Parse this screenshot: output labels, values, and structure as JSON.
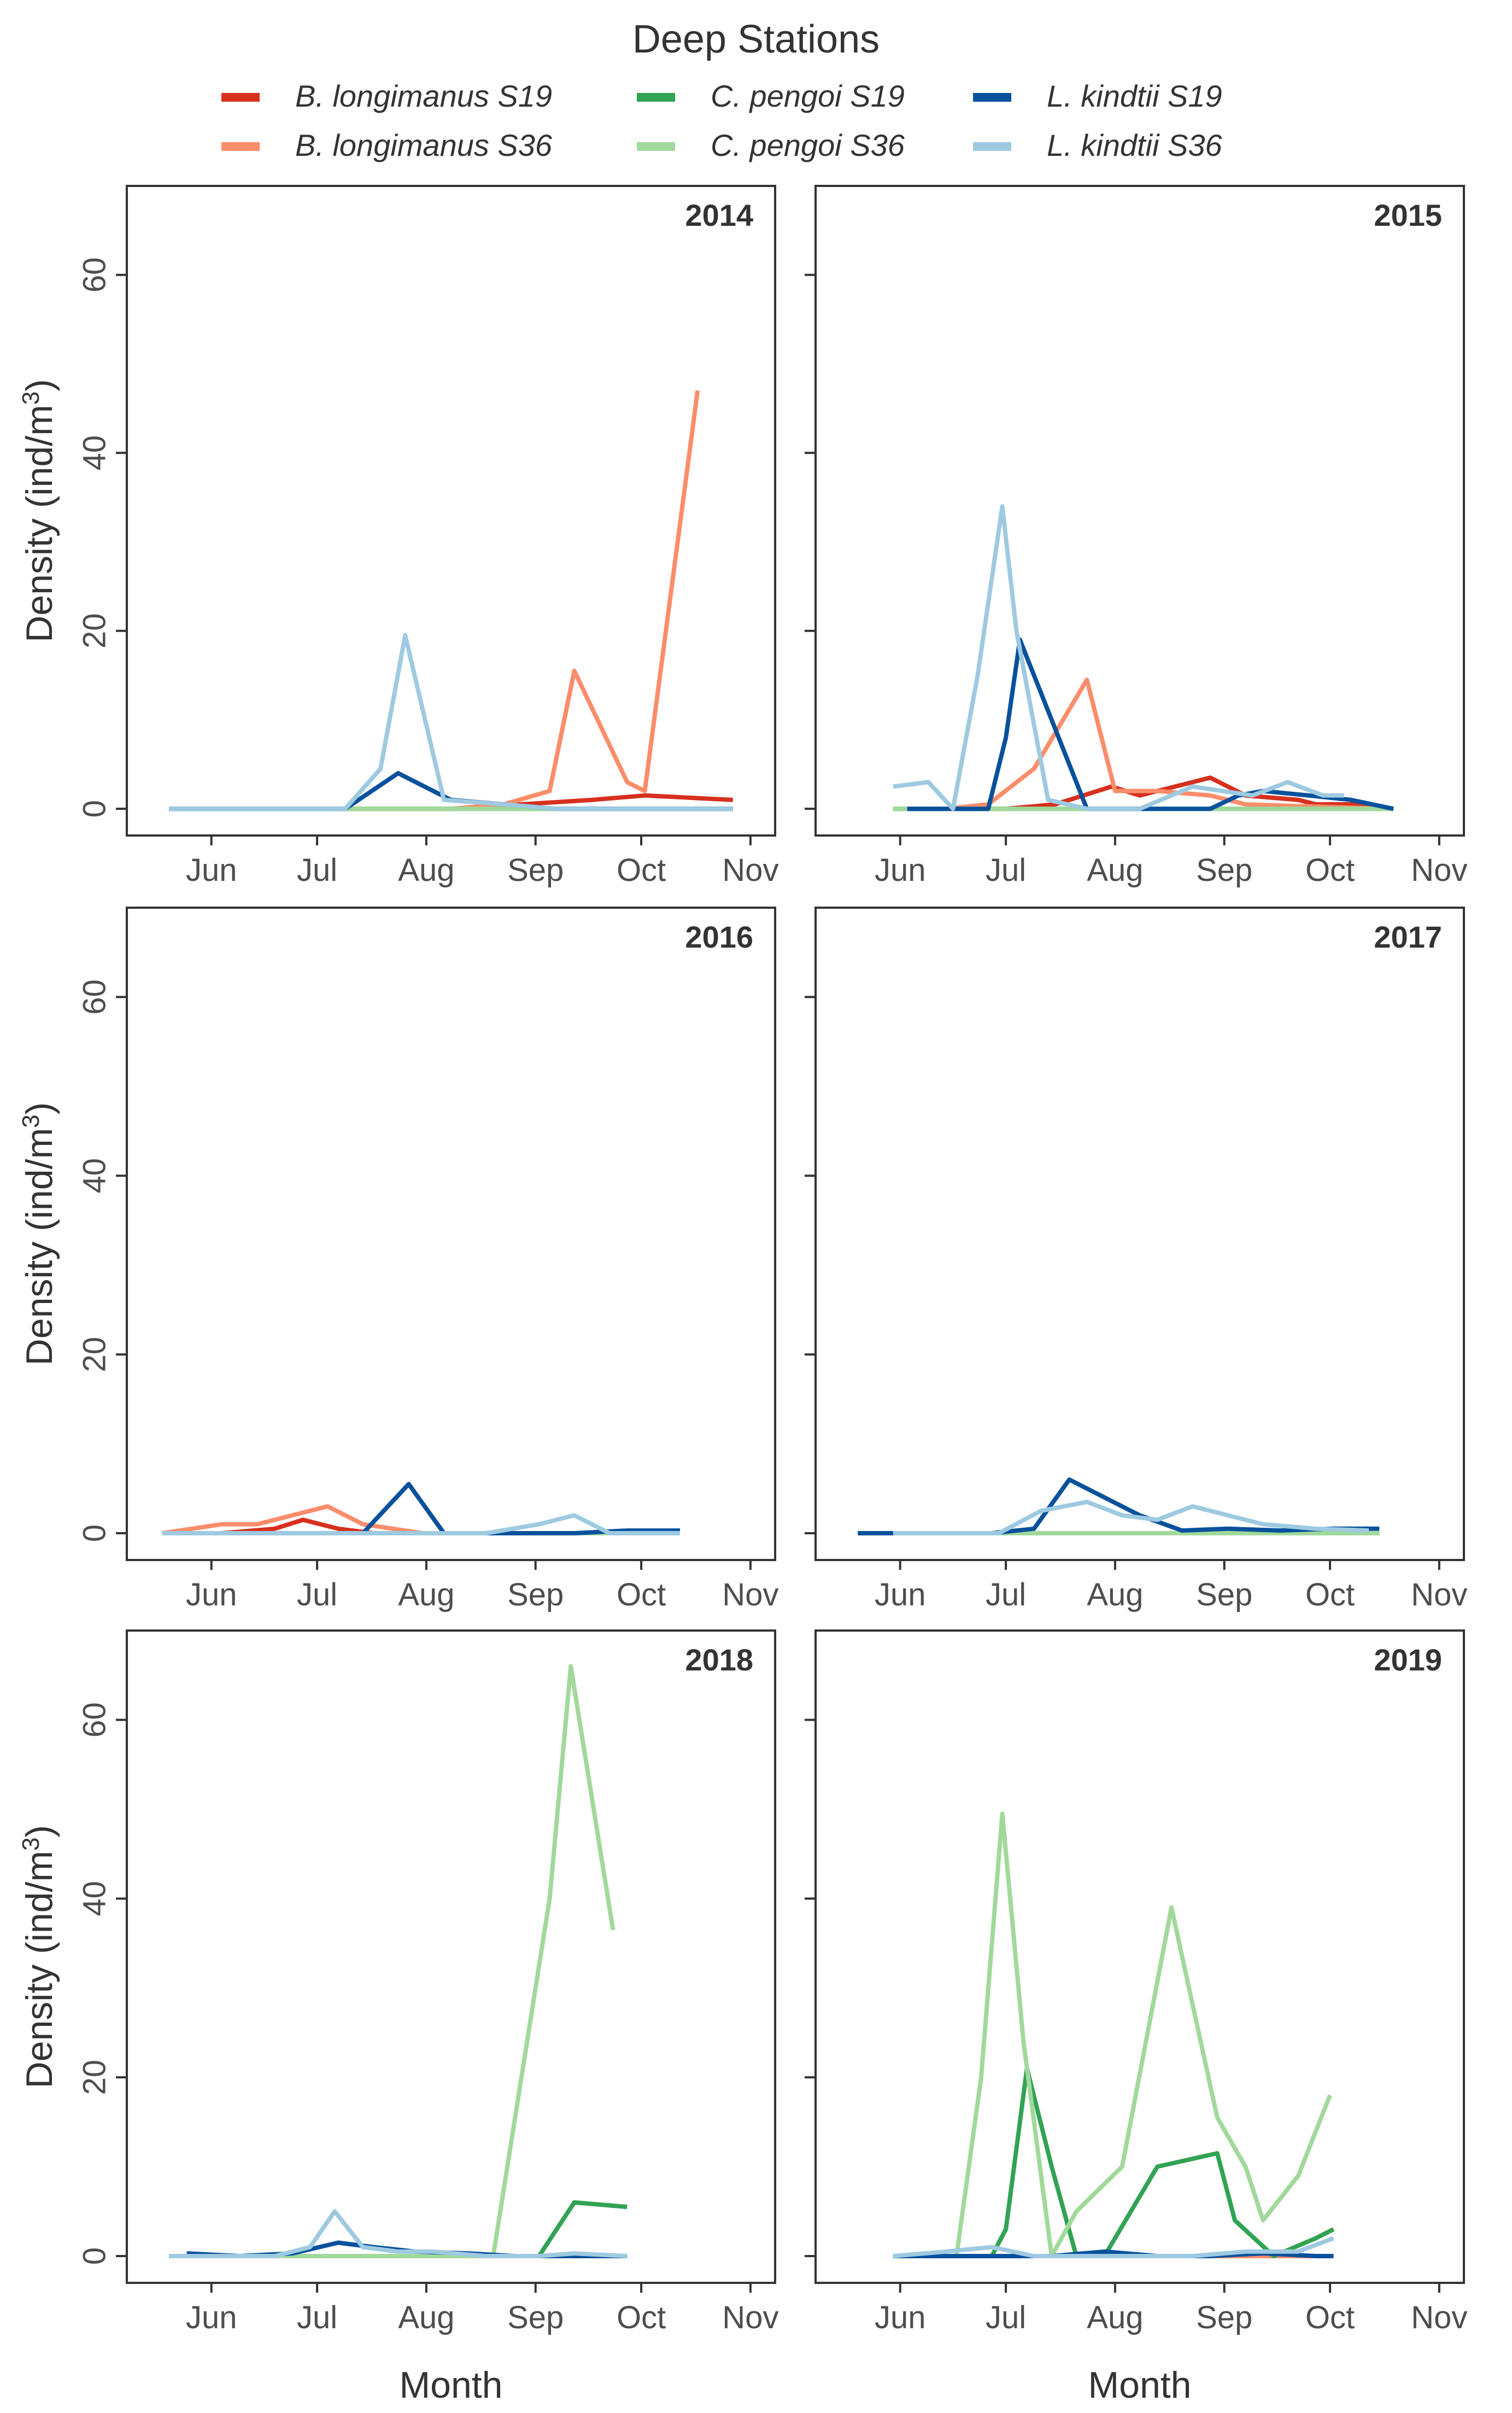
{
  "chart_data": {
    "type": "line",
    "title": "Deep Stations",
    "xlabel": "Month",
    "ylabel": "Density (ind/m³)",
    "ylabel_parts": {
      "text": "Density (ind/m",
      "sup": "3",
      "close": ")"
    },
    "xlim": [
      128,
      312
    ],
    "ylim": [
      -3,
      70
    ],
    "yticks": [
      0,
      20,
      40,
      60
    ],
    "xticks": [
      {
        "label": "Jun",
        "day": 152
      },
      {
        "label": "Jul",
        "day": 182
      },
      {
        "label": "Aug",
        "day": 213
      },
      {
        "label": "Sep",
        "day": 244
      },
      {
        "label": "Oct",
        "day": 274
      },
      {
        "label": "Nov",
        "day": 305
      }
    ],
    "grid": false,
    "legend_title": "",
    "legend_position": "top",
    "legend": [
      {
        "name": "B. longimanus S19",
        "color": "#d7301f"
      },
      {
        "name": "B. longimanus S36",
        "color": "#fc8d6a"
      },
      {
        "name": "C. pengoi S19",
        "color": "#31a354"
      },
      {
        "name": "C. pengoi S36",
        "color": "#a1d99b"
      },
      {
        "name": "L. kindtii S19",
        "color": "#08519c"
      },
      {
        "name": "L. kindtii S36",
        "color": "#9ecae1"
      }
    ],
    "panels": [
      {
        "year": "2014",
        "series": [
          {
            "name": "B. longimanus S19",
            "x": [
              140,
              160,
              175,
              190,
              205,
              220,
              240,
              260,
              275,
              300
            ],
            "y": [
              0,
              0,
              0,
              0,
              0,
              0,
              0.5,
              1,
              1.5,
              1
            ]
          },
          {
            "name": "B. longimanus S36",
            "x": [
              140,
              160,
              175,
              190,
              205,
              220,
              235,
              248,
              255,
              270,
              275,
              290
            ],
            "y": [
              0,
              0,
              0,
              0,
              0,
              0,
              0.5,
              2,
              15.5,
              3,
              2,
              47
            ]
          },
          {
            "name": "C. pengoi S19",
            "x": [
              140,
              300
            ],
            "y": [
              0,
              0
            ]
          },
          {
            "name": "C. pengoi S36",
            "x": [
              140,
              300
            ],
            "y": [
              0,
              0
            ]
          },
          {
            "name": "L. kindtii S19",
            "x": [
              140,
              160,
              175,
              190,
              205,
              220,
              235,
              250,
              275,
              300
            ],
            "y": [
              0,
              0,
              0,
              0,
              4,
              1,
              0.5,
              0,
              0,
              0
            ]
          },
          {
            "name": "L. kindtii S36",
            "x": [
              140,
              160,
              175,
              190,
              200,
              207,
              218,
              235,
              250,
              275,
              300
            ],
            "y": [
              0,
              0,
              0,
              0,
              4.5,
              19.5,
              1,
              0.5,
              0,
              0,
              0
            ]
          }
        ]
      },
      {
        "year": "2015",
        "series": [
          {
            "name": "B. longimanus S19",
            "x": [
              154,
              170,
              182,
              196,
              212,
              220,
              240,
              250,
              265,
              270,
              282,
              292
            ],
            "y": [
              0,
              0,
              0,
              0.5,
              2.5,
              1.5,
              3.5,
              1.5,
              1,
              0.5,
              0.5,
              0
            ]
          },
          {
            "name": "B. longimanus S36",
            "x": [
              150,
              165,
              177,
              190,
              205,
              213,
              225,
              240,
              250,
              265,
              275,
              290
            ],
            "y": [
              0,
              0,
              0.5,
              4.5,
              14.5,
              2,
              2,
              1.5,
              0.5,
              0.3,
              0.2,
              0
            ]
          },
          {
            "name": "C. pengoi S19",
            "x": [
              150,
              292
            ],
            "y": [
              0,
              0
            ]
          },
          {
            "name": "C. pengoi S36",
            "x": [
              150,
              292
            ],
            "y": [
              0,
              0
            ]
          },
          {
            "name": "L. kindtii S19",
            "x": [
              154,
              170,
              177,
              182,
              186,
              205,
              212,
              220,
              240,
              248,
              255,
              268,
              280,
              292
            ],
            "y": [
              0,
              0,
              0,
              8,
              19,
              0,
              0,
              0,
              0,
              1.5,
              2,
              1.5,
              1,
              0
            ]
          },
          {
            "name": "L. kindtii S36",
            "x": [
              150,
              160,
              167,
              174,
              181,
              185,
              194,
              205,
              212,
              220,
              235,
              252,
              262,
              272,
              278
            ],
            "y": [
              2.5,
              3,
              0,
              15,
              34,
              20,
              1,
              0,
              0,
              0,
              2.5,
              1.5,
              3,
              1.5,
              1.5
            ]
          }
        ]
      },
      {
        "year": "2016",
        "series": [
          {
            "name": "B. longimanus S19",
            "x": [
              138,
              155,
              170,
              178,
              188,
              198,
              212,
              230,
              250,
              270,
              285
            ],
            "y": [
              0,
              0,
              0.5,
              1.5,
              0.5,
              0,
              0,
              0,
              0,
              0,
              0
            ]
          },
          {
            "name": "B. longimanus S36",
            "x": [
              138,
              155,
              165,
              175,
              185,
              195,
              212,
              230,
              250,
              270,
              285
            ],
            "y": [
              0,
              1,
              1,
              2,
              3,
              1,
              0,
              0,
              0,
              0,
              0
            ]
          },
          {
            "name": "C. pengoi S19",
            "x": [
              138,
              285
            ],
            "y": [
              0,
              0
            ]
          },
          {
            "name": "C. pengoi S36",
            "x": [
              138,
              285
            ],
            "y": [
              0,
              0
            ]
          },
          {
            "name": "L. kindtii S19",
            "x": [
              138,
              155,
              170,
              185,
              195,
              208,
              218,
              228,
              240,
              255,
              270,
              285
            ],
            "y": [
              0,
              0,
              0,
              0,
              0,
              5.5,
              0,
              0,
              0,
              0,
              0.3,
              0.3
            ]
          },
          {
            "name": "L. kindtii S36",
            "x": [
              138,
              155,
              170,
              185,
              200,
              215,
              230,
              245,
              255,
              265,
              285
            ],
            "y": [
              0,
              0,
              0,
              0,
              0,
              0,
              0,
              1,
              2,
              0,
              0
            ]
          }
        ]
      },
      {
        "year": "2017",
        "series": [
          {
            "name": "B. longimanus S19",
            "x": [
              140,
              160,
              180,
              200,
              220,
              240,
              260,
              280,
              288
            ],
            "y": [
              0,
              0,
              0,
              0,
              0,
              0,
              0,
              0,
              0
            ]
          },
          {
            "name": "B. longimanus S36",
            "x": [
              150,
              170,
              190,
              210,
              230,
              250,
              270,
              288
            ],
            "y": [
              0,
              0,
              0,
              0,
              0,
              0,
              0,
              0
            ]
          },
          {
            "name": "C. pengoi S19",
            "x": [
              140,
              288
            ],
            "y": [
              0,
              0
            ]
          },
          {
            "name": "C. pengoi S36",
            "x": [
              150,
              288
            ],
            "y": [
              0,
              0
            ]
          },
          {
            "name": "L. kindtii S19",
            "x": [
              140,
              160,
              178,
              190,
              200,
              210,
              220,
              232,
              245,
              260,
              275,
              288
            ],
            "y": [
              0,
              0,
              0,
              0.5,
              6,
              4,
              2,
              0.3,
              0.5,
              0.3,
              0.5,
              0.5
            ]
          },
          {
            "name": "L. kindtii S36",
            "x": [
              150,
              165,
              180,
              192,
              205,
              215,
              225,
              235,
              245,
              255,
              270,
              285
            ],
            "y": [
              0,
              0,
              0,
              2.5,
              3.5,
              2,
              1.5,
              3,
              2,
              1,
              0.5,
              0.3
            ]
          }
        ]
      },
      {
        "year": "2018",
        "series": [
          {
            "name": "B. longimanus S19",
            "x": [
              145,
              160,
              175,
              190,
              205,
              220,
              240,
              255,
              270
            ],
            "y": [
              0,
              0,
              0,
              0,
              0,
              0,
              0,
              0,
              0
            ]
          },
          {
            "name": "B. longimanus S36",
            "x": [
              140,
              155,
              170,
              185,
              200,
              215,
              230,
              245,
              260,
              268
            ],
            "y": [
              0,
              0,
              0,
              0,
              0,
              0,
              0,
              0,
              0,
              0
            ]
          },
          {
            "name": "C. pengoi S19",
            "x": [
              140,
              180,
              200,
              220,
              238,
              245,
              255,
              270
            ],
            "y": [
              0,
              0,
              0,
              0,
              0,
              0,
              6,
              5.5
            ]
          },
          {
            "name": "C. pengoi S36",
            "x": [
              140,
              180,
              200,
              220,
              232,
              248,
              254,
              266
            ],
            "y": [
              0,
              0,
              0,
              0,
              0,
              40,
              66,
              36.5
            ]
          },
          {
            "name": "L. kindtii S19",
            "x": [
              145,
              160,
              175,
              188,
              198,
              210,
              225,
              238,
              255,
              270
            ],
            "y": [
              0.3,
              0,
              0.3,
              1.5,
              1,
              0.5,
              0.3,
              0,
              0,
              0
            ]
          },
          {
            "name": "L. kindtii S36",
            "x": [
              140,
              158,
              170,
              180,
              187,
              195,
              205,
              215,
              230,
              245,
              255,
              270
            ],
            "y": [
              0,
              0,
              0,
              1,
              5,
              1,
              0.5,
              0.5,
              0,
              0,
              0.3,
              0
            ]
          }
        ]
      },
      {
        "year": "2019",
        "series": [
          {
            "name": "B. longimanus S19",
            "x": [
              150,
              165,
              180,
              200,
              220,
              240,
              260,
              275
            ],
            "y": [
              0,
              0,
              0,
              0,
              0,
              0,
              0,
              0
            ]
          },
          {
            "name": "B. longimanus S36",
            "x": [
              150,
              165,
              180,
              200,
              220,
              240,
              260,
              275
            ],
            "y": [
              0,
              0,
              0,
              0,
              0,
              0,
              0,
              0
            ]
          },
          {
            "name": "C. pengoi S19",
            "x": [
              150,
              170,
              178,
              182,
              188,
              195,
              202,
              210,
              225,
              242,
              247,
              258,
              270,
              275
            ],
            "y": [
              0,
              0,
              0,
              3,
              21,
              10,
              0,
              0,
              10,
              11.5,
              4,
              0,
              2,
              3
            ]
          },
          {
            "name": "C. pengoi S36",
            "x": [
              150,
              168,
              175,
              181,
              187,
              195,
              202,
              215,
              229,
              242,
              250,
              255,
              265,
              274
            ],
            "y": [
              0,
              0,
              20,
              49.5,
              24,
              0,
              5,
              10,
              39,
              15.5,
              10,
              4,
              9,
              18
            ]
          },
          {
            "name": "L. kindtii S19",
            "x": [
              150,
              165,
              180,
              195,
              210,
              225,
              240,
              255,
              270,
              275
            ],
            "y": [
              0,
              0,
              0,
              0,
              0.5,
              0,
              0,
              0.3,
              0,
              0
            ]
          },
          {
            "name": "L. kindtii S36",
            "x": [
              150,
              165,
              178,
              190,
              205,
              220,
              235,
              250,
              265,
              275
            ],
            "y": [
              0,
              0.5,
              1,
              0,
              0,
              0,
              0,
              0.5,
              0.5,
              2
            ]
          }
        ]
      }
    ]
  }
}
